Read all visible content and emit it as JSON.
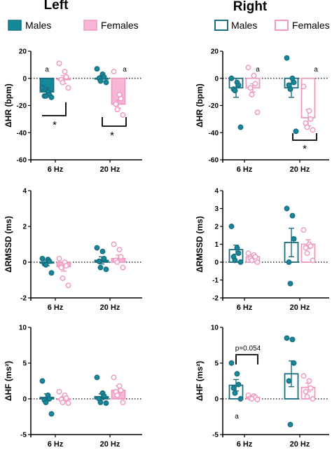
{
  "colors": {
    "male": "#1a6e82",
    "female": "#ef9ac3",
    "male_fill": "#14899a",
    "female_fill": "#f7b6d6"
  },
  "column_titles": {
    "left": "Left",
    "right": "Right"
  },
  "legend": {
    "left": {
      "males": "Males",
      "females": "Females",
      "style": "filled"
    },
    "right": {
      "males": "Males",
      "females": "Females",
      "style": "open"
    }
  },
  "chart_data": [
    {
      "id": "left-hr",
      "type": "bar",
      "side": "Left",
      "bars": "filled",
      "ylabel": "ΔHR (bpm)",
      "ylim": [
        -60,
        20
      ],
      "yticks": [
        "20",
        "0",
        "-20",
        "-40",
        "-60"
      ],
      "categories": [
        "6 Hz",
        "20 Hz"
      ],
      "series": [
        {
          "name": "Males",
          "means": [
            -10,
            0
          ],
          "sem": [
            3,
            2
          ],
          "points": [
            [
              -7,
              -10,
              -12,
              -13,
              -13,
              -14
            ],
            [
              7,
              3,
              1,
              0,
              -2,
              -3
            ]
          ]
        },
        {
          "name": "Females",
          "means": [
            -1,
            -19
          ],
          "sem": [
            3,
            3
          ],
          "points": [
            [
              11,
              5,
              1,
              -1,
              -3,
              -7
            ],
            [
              5,
              -12,
              -15,
              -19,
              -23,
              -27
            ]
          ]
        }
      ],
      "annotations": [
        "a",
        "a",
        "*",
        "*"
      ]
    },
    {
      "id": "right-hr",
      "type": "bar",
      "side": "Right",
      "bars": "open",
      "ylabel": "ΔHR (bpm)",
      "ylim": [
        -60,
        20
      ],
      "yticks": [
        "20",
        "0",
        "-20",
        "-40",
        "-60"
      ],
      "categories": [
        "6 Hz",
        "20 Hz"
      ],
      "series": [
        {
          "name": "Males",
          "means": [
            -7,
            -7
          ],
          "sem": [
            7,
            7
          ],
          "points": [
            [
              0,
              -3,
              -5,
              -8,
              -9,
              -36
            ],
            [
              15,
              0,
              -3,
              -5,
              -8,
              -39
            ]
          ]
        },
        {
          "name": "Females",
          "means": [
            -7,
            -29
          ],
          "sem": [
            3,
            6
          ],
          "points": [
            [
              8,
              2,
              -4,
              -7,
              -12,
              -25
            ],
            [
              -6,
              -24,
              -30,
              -33,
              -36,
              -38
            ]
          ]
        }
      ],
      "annotations": [
        "a",
        "a",
        "*"
      ]
    },
    {
      "id": "left-rmssd",
      "type": "bar",
      "side": "Left",
      "bars": "filled",
      "ylabel": "ΔRMSSD (ms)",
      "ylim": [
        -2,
        4
      ],
      "yticks": [
        "4",
        "2",
        "0",
        "-2"
      ],
      "categories": [
        "6 Hz",
        "20 Hz"
      ],
      "series": [
        {
          "name": "Males",
          "means": [
            -0.05,
            0.1
          ],
          "sem": [
            0.15,
            0.2
          ],
          "points": [
            [
              0.2,
              0.15,
              0.05,
              -0.1,
              -0.15,
              -0.6
            ],
            [
              0.8,
              0.6,
              0.2,
              0.05,
              -0.3,
              -0.4
            ]
          ]
        },
        {
          "name": "Females",
          "means": [
            -0.25,
            0.2
          ],
          "sem": [
            0.25,
            0.2
          ],
          "points": [
            [
              0.2,
              0.0,
              -0.2,
              -0.3,
              -0.9,
              -1.3
            ],
            [
              1.0,
              0.7,
              0.3,
              0.1,
              0.0,
              -0.3
            ]
          ]
        }
      ]
    },
    {
      "id": "right-rmssd",
      "type": "bar",
      "side": "Right",
      "bars": "open",
      "ylabel": "ΔRMSSD (ms)",
      "ylim": [
        -2,
        4
      ],
      "yticks": [
        "4",
        "3",
        "2",
        "1",
        "0",
        "-1",
        "-2"
      ],
      "categories": [
        "6 Hz",
        "20 Hz"
      ],
      "series": [
        {
          "name": "Males",
          "means": [
            0.7,
            1.1
          ],
          "sem": [
            0.25,
            0.8
          ],
          "points": [
            [
              2.0,
              0.8,
              0.5,
              0.3,
              0.1,
              0.0
            ],
            [
              3.0,
              2.6,
              1.3,
              0.0,
              -1.2
            ]
          ]
        },
        {
          "name": "Females",
          "means": [
            0.3,
            1.0
          ],
          "sem": [
            0.1,
            0.25
          ],
          "points": [
            [
              0.5,
              0.4,
              0.3,
              0.2,
              0.1,
              0.0
            ],
            [
              1.8,
              1.0,
              0.9,
              0.8,
              0.5,
              0.1
            ]
          ]
        }
      ]
    },
    {
      "id": "left-hf",
      "type": "bar",
      "side": "Left",
      "bars": "filled",
      "ylabel": "ΔHF (ms²)",
      "ylim": [
        -5,
        10
      ],
      "yticks": [
        "10",
        "5",
        "0",
        "-5"
      ],
      "categories": [
        "6 Hz",
        "20 Hz"
      ],
      "series": [
        {
          "name": "Males",
          "means": [
            0.2,
            0.3
          ],
          "sem": [
            0.5,
            0.4
          ],
          "points": [
            [
              2.5,
              0.5,
              0.0,
              -0.2,
              -0.5,
              -2.1
            ],
            [
              3.0,
              0.8,
              0.4,
              0.0,
              -0.5,
              -0.6
            ]
          ]
        },
        {
          "name": "Females",
          "means": [
            0.0,
            1.2
          ],
          "sem": [
            0.35,
            0.6
          ],
          "points": [
            [
              1.0,
              0.5,
              0.1,
              -0.1,
              -0.5,
              -0.6
            ],
            [
              3.0,
              1.8,
              1.2,
              1.0,
              0.5,
              -0.5
            ]
          ]
        }
      ]
    },
    {
      "id": "right-hf",
      "type": "bar",
      "side": "Right",
      "bars": "open",
      "ylabel": "ΔHF (ms²)",
      "ylim": [
        -5,
        10
      ],
      "yticks": [
        "10",
        "5",
        "0",
        "-5"
      ],
      "categories": [
        "6 Hz",
        "20 Hz"
      ],
      "series": [
        {
          "name": "Males",
          "means": [
            1.9,
            3.5
          ],
          "sem": [
            0.8,
            1.8
          ],
          "points": [
            [
              5.0,
              3.5,
              2.0,
              1.5,
              0.8,
              0.0
            ],
            [
              8.5,
              8.3,
              5.0,
              2.5,
              -3.6
            ]
          ]
        },
        {
          "name": "Females",
          "means": [
            0.2,
            1.6
          ],
          "sem": [
            0.15,
            0.6
          ],
          "points": [
            [
              0.5,
              0.4,
              0.2,
              0.1,
              0.0,
              -0.1
            ],
            [
              3.2,
              2.5,
              1.5,
              1.0,
              0.3,
              0.0
            ]
          ]
        }
      ],
      "annotations": [
        "p=0.054",
        "a"
      ]
    }
  ]
}
